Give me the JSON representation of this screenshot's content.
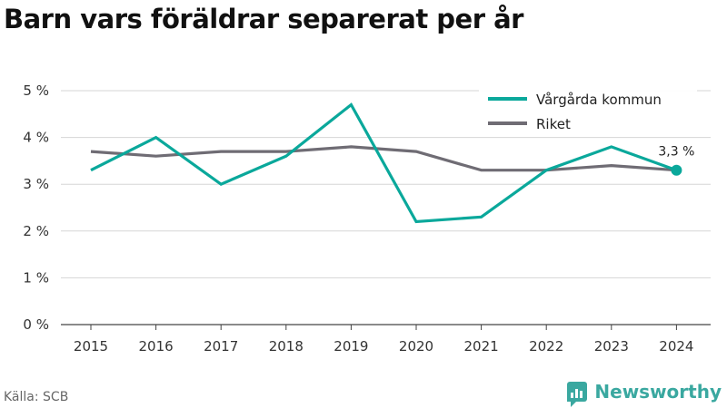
{
  "title": "Barn vars föräldrar separerat per år",
  "footer": {
    "source": "Källa: SCB",
    "brand": "Newsworthy"
  },
  "colors": {
    "accent": "#0aa89b",
    "secondary": "#6f6c74",
    "brand": "#3aa8a0"
  },
  "chart_data": {
    "type": "line",
    "title": "Barn vars föräldrar separerat per år",
    "xlabel": "",
    "ylabel": "",
    "categories": [
      "2015",
      "2016",
      "2017",
      "2018",
      "2019",
      "2020",
      "2021",
      "2022",
      "2023",
      "2024"
    ],
    "series": [
      {
        "name": "Vårgårda kommun",
        "color": "#0aa89b",
        "values": [
          3.3,
          4.0,
          3.0,
          3.6,
          4.7,
          2.2,
          2.3,
          3.3,
          3.8,
          3.3
        ]
      },
      {
        "name": "Riket",
        "color": "#6f6c74",
        "values": [
          3.7,
          3.6,
          3.7,
          3.7,
          3.8,
          3.7,
          3.3,
          3.3,
          3.4,
          3.3
        ]
      }
    ],
    "ylim": [
      0,
      5
    ],
    "yticks": [
      "0 %",
      "1 %",
      "2 %",
      "3 %",
      "4 %",
      "5 %"
    ],
    "grid": true,
    "legend_position": "top-right",
    "annotations": [
      {
        "series": "Vårgårda kommun",
        "category": "2024",
        "text": "3,3 %"
      }
    ]
  }
}
